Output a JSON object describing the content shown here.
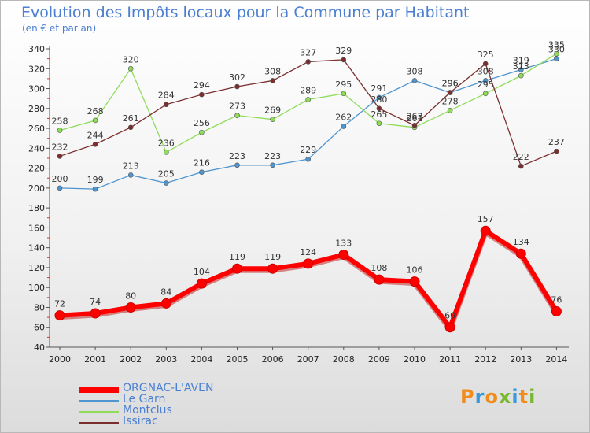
{
  "header": {
    "title": "Evolution des Impôts locaux pour la Commune par Habitant",
    "subtitle": "(en € et par an)"
  },
  "chart_data": {
    "type": "line",
    "x": [
      "2000",
      "2001",
      "2002",
      "2003",
      "2004",
      "2005",
      "2006",
      "2007",
      "2008",
      "2009",
      "2010",
      "2011",
      "2012",
      "2013",
      "2014"
    ],
    "ylim": [
      40,
      340
    ],
    "yticks": [
      40,
      60,
      80,
      100,
      120,
      140,
      160,
      180,
      200,
      220,
      240,
      260,
      280,
      300,
      320,
      340
    ],
    "grid": false,
    "legend": "bottom-left",
    "series": [
      {
        "name": "ORGNAC-L'AVEN",
        "color": "#ff0000",
        "values": [
          72,
          74,
          80,
          84,
          104,
          119,
          119,
          124,
          133,
          108,
          106,
          60,
          157,
          134,
          76
        ]
      },
      {
        "name": "Le Garn",
        "color": "#4f95cf",
        "values": [
          200,
          199,
          213,
          205,
          216,
          223,
          223,
          229,
          262,
          291,
          308,
          296,
          308,
          319,
          330
        ]
      },
      {
        "name": "Montclus",
        "color": "#8fdc5a",
        "values": [
          258,
          268,
          320,
          236,
          256,
          273,
          269,
          289,
          295,
          265,
          261,
          278,
          295,
          313,
          335
        ]
      },
      {
        "name": "Issirac",
        "color": "#7b2e2e",
        "values": [
          232,
          244,
          261,
          284,
          294,
          302,
          308,
          327,
          329,
          280,
          263,
          296,
          325,
          222,
          237
        ]
      }
    ]
  },
  "logo": {
    "letters": [
      "P",
      "r",
      "o",
      "x",
      "i",
      "t",
      "i"
    ],
    "colors": [
      "#f08c1c",
      "#3a9ad9",
      "#f08c1c",
      "#7ab82f",
      "#3a9ad9",
      "#f08c1c",
      "#7ab82f"
    ]
  }
}
